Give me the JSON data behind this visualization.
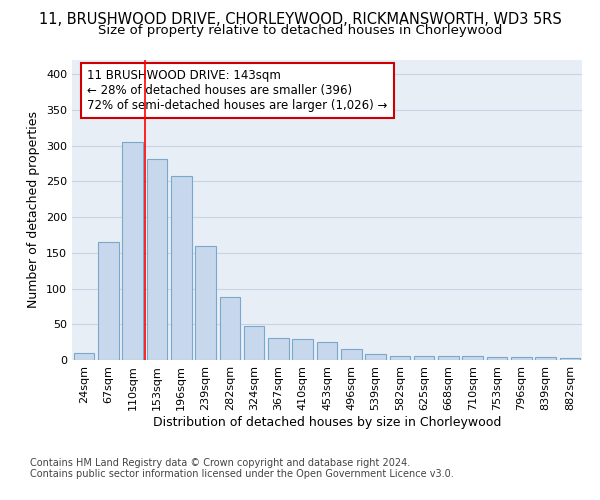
{
  "title_line1": "11, BRUSHWOOD DRIVE, CHORLEYWOOD, RICKMANSWORTH, WD3 5RS",
  "title_line2": "Size of property relative to detached houses in Chorleywood",
  "xlabel": "Distribution of detached houses by size in Chorleywood",
  "ylabel": "Number of detached properties",
  "bar_labels": [
    "24sqm",
    "67sqm",
    "110sqm",
    "153sqm",
    "196sqm",
    "239sqm",
    "282sqm",
    "324sqm",
    "367sqm",
    "410sqm",
    "453sqm",
    "496sqm",
    "539sqm",
    "582sqm",
    "625sqm",
    "668sqm",
    "710sqm",
    "753sqm",
    "796sqm",
    "839sqm",
    "882sqm"
  ],
  "bar_values": [
    10,
    165,
    305,
    282,
    258,
    160,
    88,
    48,
    31,
    29,
    25,
    15,
    8,
    6,
    6,
    5,
    5,
    4,
    4,
    4,
    3
  ],
  "bar_color": "#c8d8ec",
  "bar_edgecolor": "#7aa8cc",
  "redline_x": 2.5,
  "annotation_text": "11 BRUSHWOOD DRIVE: 143sqm\n← 28% of detached houses are smaller (396)\n72% of semi-detached houses are larger (1,026) →",
  "annotation_box_edgecolor": "#cc0000",
  "ylim": [
    0,
    420
  ],
  "yticks": [
    0,
    50,
    100,
    150,
    200,
    250,
    300,
    350,
    400
  ],
  "grid_color": "#c8d4e4",
  "background_color": "#e8eef5",
  "footer_text": "Contains HM Land Registry data © Crown copyright and database right 2024.\nContains public sector information licensed under the Open Government Licence v3.0.",
  "title_fontsize": 10.5,
  "subtitle_fontsize": 9.5,
  "axis_label_fontsize": 9,
  "tick_fontsize": 8,
  "annotation_fontsize": 8.5,
  "footer_fontsize": 7
}
